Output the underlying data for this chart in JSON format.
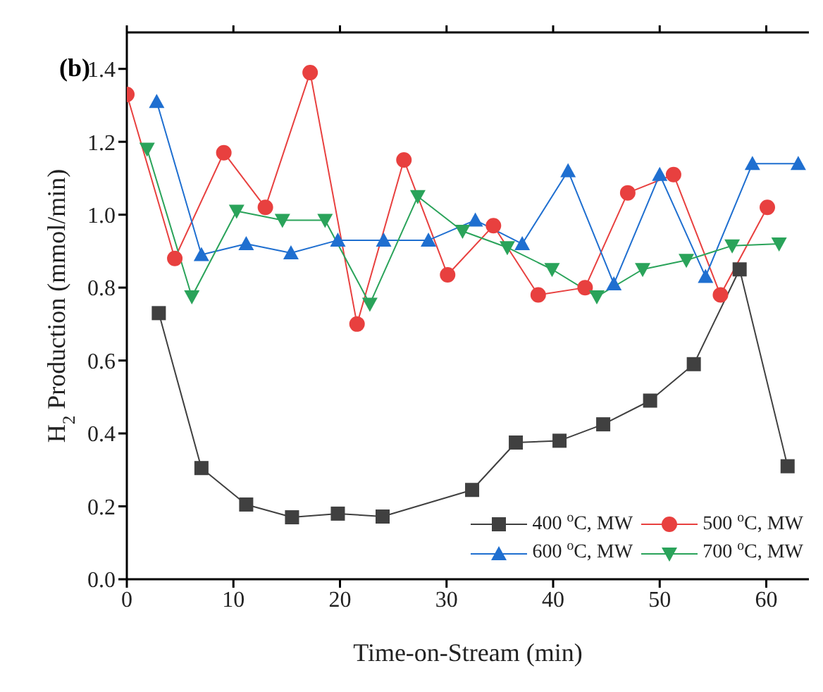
{
  "chart_data": {
    "type": "line",
    "xlabel": "Time-on-Stream (min)",
    "ylabel": "H$_{2}$ Production (mmol/min)",
    "annotations": [
      "(b)"
    ],
    "xlim": [
      0,
      64
    ],
    "xticks": [
      0,
      10,
      20,
      30,
      40,
      50,
      60
    ],
    "ylim": [
      0,
      1.5
    ],
    "yticks": [
      {
        "value": 0,
        "label": "0.0"
      },
      {
        "value": 0.2,
        "label": "0.2"
      },
      {
        "value": 0.4,
        "label": "0.4"
      },
      {
        "value": 0.6,
        "label": "0.6"
      },
      {
        "value": 0.8,
        "label": "0.8"
      },
      {
        "value": 1.0,
        "label": "1.0"
      },
      {
        "value": 1.2,
        "label": "1.2"
      },
      {
        "value": 1.4,
        "label": "1.4"
      }
    ],
    "grid": false,
    "legend": "bottom right",
    "line_style": "solid",
    "series": [
      {
        "name": "400 $^{o}$C, MW",
        "color": "#404040",
        "marker": "square",
        "x": [
          3.0,
          7.0,
          11.2,
          15.5,
          19.8,
          24,
          32.4,
          36.5,
          40.6,
          44.7,
          49.1,
          53.2,
          57.5,
          62
        ],
        "values": [
          0.73,
          0.305,
          0.205,
          0.17,
          0.18,
          0.172,
          0.245,
          0.375,
          0.38,
          0.425,
          0.49,
          0.59,
          0.85,
          0.31
        ]
      },
      {
        "name": "500 $^{o}$C, MW",
        "color": "#e8403f",
        "marker": "circle",
        "x": [
          0,
          4.5,
          9.1,
          13,
          17.2,
          21.6,
          26,
          30.1,
          34.4,
          38.6,
          43,
          47,
          51.3,
          55.7,
          60.1
        ],
        "values": [
          1.33,
          0.88,
          1.17,
          1.02,
          1.39,
          0.7,
          1.15,
          0.835,
          0.97,
          0.78,
          0.8,
          1.06,
          1.11,
          0.78,
          1.02
        ]
      },
      {
        "name": "600 $^{o}$C, MW",
        "color": "#1f6fd0",
        "marker": "triangle",
        "x": [
          2.8,
          7,
          11.2,
          15.4,
          19.8,
          24.1,
          28.3,
          32.7,
          37.1,
          41.4,
          45.7,
          50,
          54.3,
          58.7,
          63
        ],
        "values": [
          1.31,
          0.89,
          0.92,
          0.895,
          0.93,
          0.93,
          0.93,
          0.985,
          0.92,
          1.12,
          0.81,
          1.11,
          0.83,
          1.14,
          1.14
        ]
      },
      {
        "name": "700 $^{o}$C, MW",
        "color": "#2aa35a",
        "marker": "triangle-down",
        "x": [
          1.9,
          6.1,
          10.3,
          14.6,
          18.6,
          22.8,
          27.3,
          31.5,
          35.7,
          39.9,
          44.1,
          48.4,
          52.5,
          56.8,
          61.2
        ],
        "values": [
          1.18,
          0.775,
          1.01,
          0.985,
          0.985,
          0.755,
          1.05,
          0.955,
          0.91,
          0.85,
          0.775,
          0.85,
          0.875,
          0.915,
          0.92
        ]
      }
    ]
  }
}
